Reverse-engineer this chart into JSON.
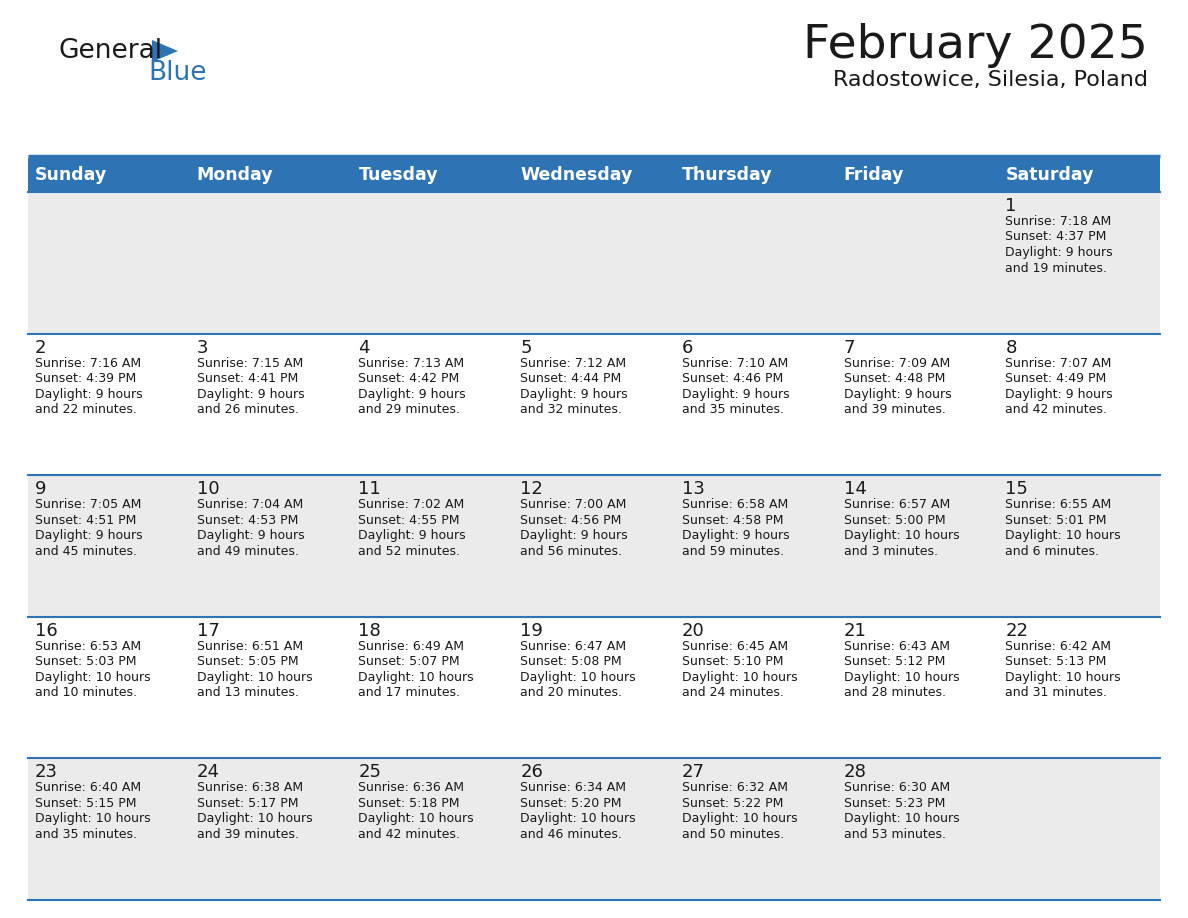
{
  "title": "February 2025",
  "subtitle": "Radostowice, Silesia, Poland",
  "header_bg": "#2E74B5",
  "header_text_color": "#FFFFFF",
  "cell_bg_odd": "#EBEBEB",
  "cell_bg_even": "#FFFFFF",
  "text_color": "#1a1a1a",
  "day_names": [
    "Sunday",
    "Monday",
    "Tuesday",
    "Wednesday",
    "Thursday",
    "Friday",
    "Saturday"
  ],
  "logo_blue_color": "#2E74B5",
  "line_color": "#2E74B5",
  "calendar_data": [
    [
      null,
      null,
      null,
      null,
      null,
      null,
      {
        "day": "1",
        "sunrise": "7:18 AM",
        "sunset": "4:37 PM",
        "daylight_line1": "Daylight: 9 hours",
        "daylight_line2": "and 19 minutes."
      }
    ],
    [
      {
        "day": "2",
        "sunrise": "7:16 AM",
        "sunset": "4:39 PM",
        "daylight_line1": "Daylight: 9 hours",
        "daylight_line2": "and 22 minutes."
      },
      {
        "day": "3",
        "sunrise": "7:15 AM",
        "sunset": "4:41 PM",
        "daylight_line1": "Daylight: 9 hours",
        "daylight_line2": "and 26 minutes."
      },
      {
        "day": "4",
        "sunrise": "7:13 AM",
        "sunset": "4:42 PM",
        "daylight_line1": "Daylight: 9 hours",
        "daylight_line2": "and 29 minutes."
      },
      {
        "day": "5",
        "sunrise": "7:12 AM",
        "sunset": "4:44 PM",
        "daylight_line1": "Daylight: 9 hours",
        "daylight_line2": "and 32 minutes."
      },
      {
        "day": "6",
        "sunrise": "7:10 AM",
        "sunset": "4:46 PM",
        "daylight_line1": "Daylight: 9 hours",
        "daylight_line2": "and 35 minutes."
      },
      {
        "day": "7",
        "sunrise": "7:09 AM",
        "sunset": "4:48 PM",
        "daylight_line1": "Daylight: 9 hours",
        "daylight_line2": "and 39 minutes."
      },
      {
        "day": "8",
        "sunrise": "7:07 AM",
        "sunset": "4:49 PM",
        "daylight_line1": "Daylight: 9 hours",
        "daylight_line2": "and 42 minutes."
      }
    ],
    [
      {
        "day": "9",
        "sunrise": "7:05 AM",
        "sunset": "4:51 PM",
        "daylight_line1": "Daylight: 9 hours",
        "daylight_line2": "and 45 minutes."
      },
      {
        "day": "10",
        "sunrise": "7:04 AM",
        "sunset": "4:53 PM",
        "daylight_line1": "Daylight: 9 hours",
        "daylight_line2": "and 49 minutes."
      },
      {
        "day": "11",
        "sunrise": "7:02 AM",
        "sunset": "4:55 PM",
        "daylight_line1": "Daylight: 9 hours",
        "daylight_line2": "and 52 minutes."
      },
      {
        "day": "12",
        "sunrise": "7:00 AM",
        "sunset": "4:56 PM",
        "daylight_line1": "Daylight: 9 hours",
        "daylight_line2": "and 56 minutes."
      },
      {
        "day": "13",
        "sunrise": "6:58 AM",
        "sunset": "4:58 PM",
        "daylight_line1": "Daylight: 9 hours",
        "daylight_line2": "and 59 minutes."
      },
      {
        "day": "14",
        "sunrise": "6:57 AM",
        "sunset": "5:00 PM",
        "daylight_line1": "Daylight: 10 hours",
        "daylight_line2": "and 3 minutes."
      },
      {
        "day": "15",
        "sunrise": "6:55 AM",
        "sunset": "5:01 PM",
        "daylight_line1": "Daylight: 10 hours",
        "daylight_line2": "and 6 minutes."
      }
    ],
    [
      {
        "day": "16",
        "sunrise": "6:53 AM",
        "sunset": "5:03 PM",
        "daylight_line1": "Daylight: 10 hours",
        "daylight_line2": "and 10 minutes."
      },
      {
        "day": "17",
        "sunrise": "6:51 AM",
        "sunset": "5:05 PM",
        "daylight_line1": "Daylight: 10 hours",
        "daylight_line2": "and 13 minutes."
      },
      {
        "day": "18",
        "sunrise": "6:49 AM",
        "sunset": "5:07 PM",
        "daylight_line1": "Daylight: 10 hours",
        "daylight_line2": "and 17 minutes."
      },
      {
        "day": "19",
        "sunrise": "6:47 AM",
        "sunset": "5:08 PM",
        "daylight_line1": "Daylight: 10 hours",
        "daylight_line2": "and 20 minutes."
      },
      {
        "day": "20",
        "sunrise": "6:45 AM",
        "sunset": "5:10 PM",
        "daylight_line1": "Daylight: 10 hours",
        "daylight_line2": "and 24 minutes."
      },
      {
        "day": "21",
        "sunrise": "6:43 AM",
        "sunset": "5:12 PM",
        "daylight_line1": "Daylight: 10 hours",
        "daylight_line2": "and 28 minutes."
      },
      {
        "day": "22",
        "sunrise": "6:42 AM",
        "sunset": "5:13 PM",
        "daylight_line1": "Daylight: 10 hours",
        "daylight_line2": "and 31 minutes."
      }
    ],
    [
      {
        "day": "23",
        "sunrise": "6:40 AM",
        "sunset": "5:15 PM",
        "daylight_line1": "Daylight: 10 hours",
        "daylight_line2": "and 35 minutes."
      },
      {
        "day": "24",
        "sunrise": "6:38 AM",
        "sunset": "5:17 PM",
        "daylight_line1": "Daylight: 10 hours",
        "daylight_line2": "and 39 minutes."
      },
      {
        "day": "25",
        "sunrise": "6:36 AM",
        "sunset": "5:18 PM",
        "daylight_line1": "Daylight: 10 hours",
        "daylight_line2": "and 42 minutes."
      },
      {
        "day": "26",
        "sunrise": "6:34 AM",
        "sunset": "5:20 PM",
        "daylight_line1": "Daylight: 10 hours",
        "daylight_line2": "and 46 minutes."
      },
      {
        "day": "27",
        "sunrise": "6:32 AM",
        "sunset": "5:22 PM",
        "daylight_line1": "Daylight: 10 hours",
        "daylight_line2": "and 50 minutes."
      },
      {
        "day": "28",
        "sunrise": "6:30 AM",
        "sunset": "5:23 PM",
        "daylight_line1": "Daylight: 10 hours",
        "daylight_line2": "and 53 minutes."
      },
      null
    ]
  ]
}
